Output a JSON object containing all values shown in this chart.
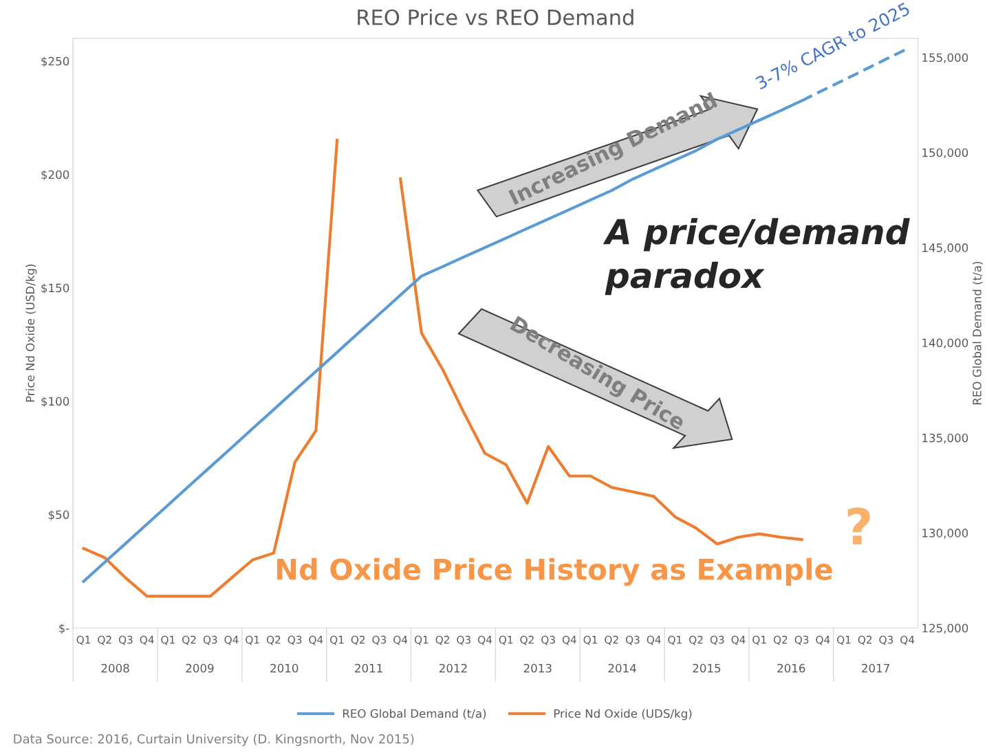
{
  "chart_data": {
    "type": "line",
    "title": "REO Price vs REO Demand",
    "ylabel": "Price Nd Oxide (USD/kg)",
    "y2label": "REO Global Demand (t/a)",
    "categories": [
      "Q1",
      "Q2",
      "Q3",
      "Q4",
      "Q1",
      "Q2",
      "Q3",
      "Q4",
      "Q1",
      "Q2",
      "Q3",
      "Q4",
      "Q1",
      "Q2",
      "Q3",
      "Q4",
      "Q1",
      "Q2",
      "Q3",
      "Q4",
      "Q1",
      "Q2",
      "Q3",
      "Q4",
      "Q1",
      "Q2",
      "Q3",
      "Q4",
      "Q1",
      "Q2",
      "Q3",
      "Q4",
      "Q1",
      "Q2",
      "Q3",
      "Q4",
      "Q1",
      "Q2",
      "Q3",
      "Q4"
    ],
    "series": [
      {
        "name": "REO Global Demand (t/a)",
        "color": "#5b9bd5",
        "axis": "y2",
        "values": [
          127450,
          128450,
          129450,
          130460,
          131460,
          132470,
          133470,
          134470,
          135480,
          136480,
          137490,
          138490,
          139490,
          140500,
          141500,
          142500,
          143500,
          144000,
          144500,
          145000,
          145500,
          146000,
          146500,
          147000,
          147500,
          148000,
          148600,
          149100,
          149600,
          150100,
          150700,
          151200,
          151700,
          152200,
          152720,
          null,
          null,
          null,
          null,
          null
        ]
      },
      {
        "color": "#5b9bd5",
        "axis": "y2",
        "line_style": "dashed",
        "values": [
          null,
          null,
          null,
          null,
          null,
          null,
          null,
          null,
          null,
          null,
          null,
          null,
          null,
          null,
          null,
          null,
          null,
          null,
          null,
          null,
          null,
          null,
          null,
          null,
          null,
          null,
          null,
          null,
          null,
          null,
          null,
          null,
          null,
          null,
          152720,
          153270,
          153810,
          154360,
          154910,
          155450
        ]
      },
      {
        "name": "Price Nd Oxide (UDS/kg)",
        "color": "#ed7d31",
        "values": [
          35,
          31,
          22,
          14,
          14,
          14,
          14,
          22,
          30,
          33,
          73,
          87,
          215,
          null,
          null,
          198,
          130,
          114,
          95,
          77,
          72,
          55,
          80,
          67,
          67,
          62,
          60,
          58,
          49,
          44,
          37,
          40,
          41.5,
          40,
          39,
          null,
          null,
          null,
          null,
          null
        ]
      }
    ],
    "ylim": [
      0,
      260
    ],
    "yticks": [
      {
        "value": 0,
        "label": "$-"
      },
      {
        "value": 50,
        "label": "$50"
      },
      {
        "value": 100,
        "label": "$100"
      },
      {
        "value": 150,
        "label": "$150"
      },
      {
        "value": 200,
        "label": "$200"
      },
      {
        "value": 250,
        "label": "$250"
      }
    ],
    "y2lim": [
      125000,
      156000
    ],
    "y2ticks": [
      {
        "value": 125000,
        "label": "125,000"
      },
      {
        "value": 130000,
        "label": "130,000"
      },
      {
        "value": 135000,
        "label": "135,000"
      },
      {
        "value": 140000,
        "label": "140,000"
      },
      {
        "value": 145000,
        "label": "145,000"
      },
      {
        "value": 150000,
        "label": "150,000"
      },
      {
        "value": 155000,
        "label": "155,000"
      }
    ],
    "grid": false,
    "legend": "bottom",
    "line_style": "solid",
    "annotations": [
      "2008",
      "2009",
      "2010",
      "2011",
      "2012",
      "2013",
      "2014",
      "2015",
      "2016",
      "2017",
      "3-7% CAGR to 2025",
      "Increasing Demand",
      "Decreasing Price",
      "A price/demand paradox",
      "Nd Oxide Price History as Example",
      "?",
      "Data Source: 2016, Curtain University (D. Kingsnorth, Nov 2015)"
    ]
  }
}
